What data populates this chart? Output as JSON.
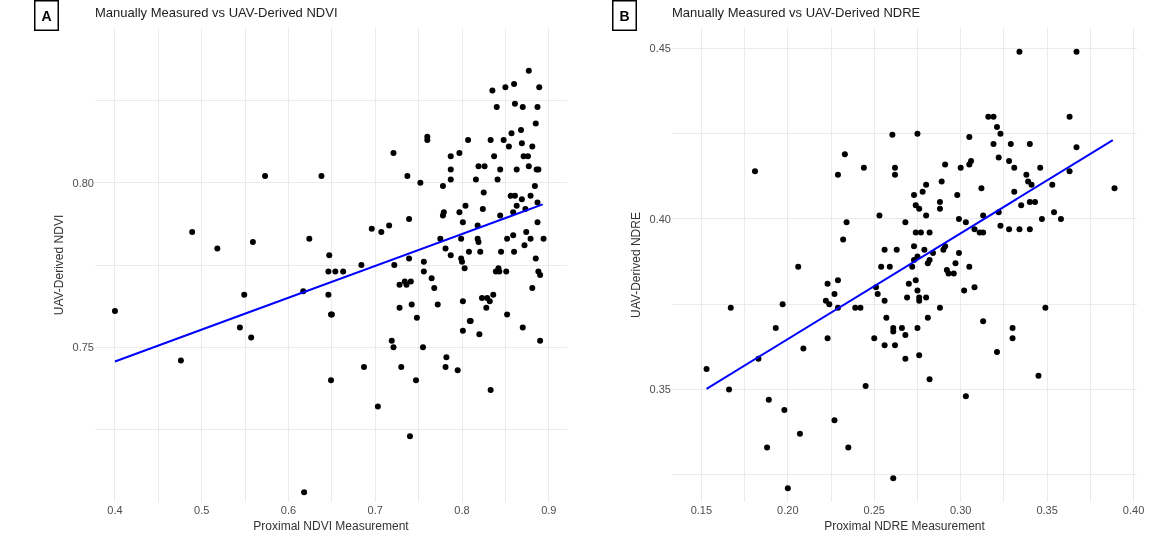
{
  "chart_data": [
    {
      "type": "scatter",
      "title": "Manually Measured vs UAV-Derived NDVI",
      "xlabel": "Proximal NDVI Measurement",
      "ylabel": "UAV-Derived NDVI",
      "annotations": [
        "A"
      ],
      "xlim": [
        0.377,
        0.921
      ],
      "ylim": [
        0.703,
        0.847
      ],
      "xticks": [
        0.4,
        {
          "value": 0.45,
          "label": null
        },
        0.5,
        {
          "value": 0.55,
          "label": null
        },
        0.6,
        {
          "value": 0.65,
          "label": null
        },
        0.7,
        {
          "value": 0.75,
          "label": null
        },
        0.8,
        {
          "value": 0.85,
          "label": null
        },
        0.9
      ],
      "yticks": [
        {
          "value": 0.725,
          "label": null
        },
        0.75,
        {
          "value": 0.775,
          "label": null
        },
        {
          "value": 0.8,
          "label": "0.80"
        },
        {
          "value": 0.825,
          "label": null
        }
      ],
      "grid": true,
      "series": [
        {
          "color": "#000000",
          "marker": "circle",
          "x": [
            0.4,
            0.476,
            0.489,
            0.518,
            0.544,
            0.549,
            0.557,
            0.559,
            0.573,
            0.617,
            0.618,
            0.624,
            0.638,
            0.646,
            0.646,
            0.647,
            0.649,
            0.649,
            0.65,
            0.654,
            0.663,
            0.684,
            0.687,
            0.696,
            0.703,
            0.707,
            0.716,
            0.721,
            0.719,
            0.721,
            0.722,
            0.728,
            0.728,
            0.73,
            0.734,
            0.736,
            0.741,
            0.737,
            0.739,
            0.739,
            0.74,
            0.742,
            0.747,
            0.748,
            0.752,
            0.755,
            0.756,
            0.756,
            0.76,
            0.76,
            0.765,
            0.768,
            0.772,
            0.775,
            0.778,
            0.778,
            0.779,
            0.781,
            0.782,
            0.781,
            0.787,
            0.787,
            0.787,
            0.787,
            0.795,
            0.797,
            0.797,
            0.799,
            0.799,
            0.8,
            0.801,
            0.801,
            0.801,
            0.803,
            0.804,
            0.807,
            0.808,
            0.809,
            0.81,
            0.816,
            0.818,
            0.819,
            0.818,
            0.819,
            0.82,
            0.821,
            0.823,
            0.824,
            0.825,
            0.826,
            0.828,
            0.829,
            0.833,
            0.832,
            0.833,
            0.835,
            0.836,
            0.837,
            0.839,
            0.84,
            0.841,
            0.842,
            0.843,
            0.844,
            0.844,
            0.845,
            0.848,
            0.85,
            0.851,
            0.852,
            0.852,
            0.854,
            0.856,
            0.857,
            0.859,
            0.859,
            0.86,
            0.86,
            0.861,
            0.861,
            0.863,
            0.863,
            0.868,
            0.869,
            0.869,
            0.87,
            0.87,
            0.871,
            0.872,
            0.873,
            0.874,
            0.876,
            0.877,
            0.877,
            0.879,
            0.879,
            0.881,
            0.881,
            0.884,
            0.885,
            0.885,
            0.886,
            0.887,
            0.887,
            0.887,
            0.888,
            0.888,
            0.889,
            0.89,
            0.89,
            0.894
          ],
          "values": [
            0.761,
            0.746,
            0.785,
            0.78,
            0.756,
            0.766,
            0.753,
            0.782,
            0.802,
            0.767,
            0.706,
            0.783,
            0.802,
            0.773,
            0.766,
            0.778,
            0.74,
            0.76,
            0.76,
            0.773,
            0.773,
            0.775,
            0.744,
            0.786,
            0.732,
            0.785,
            0.787,
            0.809,
            0.752,
            0.75,
            0.775,
            0.769,
            0.762,
            0.744,
            0.77,
            0.769,
            0.77,
            0.802,
            0.789,
            0.777,
            0.723,
            0.763,
            0.74,
            0.759,
            0.8,
            0.75,
            0.776,
            0.773,
            0.814,
            0.813,
            0.771,
            0.768,
            0.763,
            0.783,
            0.799,
            0.79,
            0.791,
            0.78,
            0.747,
            0.744,
            0.808,
            0.804,
            0.801,
            0.778,
            0.743,
            0.809,
            0.791,
            0.783,
            0.777,
            0.776,
            0.788,
            0.764,
            0.755,
            0.774,
            0.793,
            0.813,
            0.779,
            0.758,
            0.758,
            0.801,
            0.787,
            0.805,
            0.783,
            0.782,
            0.754,
            0.779,
            0.765,
            0.792,
            0.797,
            0.805,
            0.762,
            0.765,
            0.737,
            0.764,
            0.813,
            0.828,
            0.766,
            0.808,
            0.773,
            0.823,
            0.801,
            0.774,
            0.773,
            0.804,
            0.79,
            0.779,
            0.813,
            0.829,
            0.773,
            0.783,
            0.76,
            0.811,
            0.796,
            0.815,
            0.791,
            0.784,
            0.83,
            0.779,
            0.824,
            0.796,
            0.804,
            0.793,
            0.816,
            0.795,
            0.812,
            0.756,
            0.823,
            0.808,
            0.781,
            0.792,
            0.785,
            0.808,
            0.805,
            0.834,
            0.796,
            0.783,
            0.768,
            0.811,
            0.799,
            0.818,
            0.777,
            0.804,
            0.823,
            0.794,
            0.788,
            0.804,
            0.773,
            0.829,
            0.772,
            0.752,
            0.783
          ]
        },
        {
          "type": "line",
          "color": "#0000ff",
          "x": [
            0.4,
            0.893
          ],
          "values": [
            0.7457,
            0.7934
          ]
        }
      ]
    },
    {
      "type": "scatter",
      "title": "Manually Measured vs UAV-Derived NDRE",
      "xlabel": "Proximal NDRE Measurement",
      "ylabel": "UAV-Derived NDRE",
      "annotations": [
        "B"
      ],
      "xlim": [
        0.133,
        0.402
      ],
      "ylim": [
        0.317,
        0.456
      ],
      "xticks": [
        {
          "value": 0.15,
          "label": "0.15"
        },
        {
          "value": 0.175,
          "label": null
        },
        {
          "value": 0.2,
          "label": "0.20"
        },
        {
          "value": 0.225,
          "label": null
        },
        {
          "value": 0.25,
          "label": "0.25"
        },
        {
          "value": 0.275,
          "label": null
        },
        {
          "value": 0.3,
          "label": "0.30"
        },
        {
          "value": 0.325,
          "label": null
        },
        {
          "value": 0.35,
          "label": "0.35"
        },
        {
          "value": 0.375,
          "label": null
        },
        {
          "value": 0.4,
          "label": "0.40"
        }
      ],
      "yticks": [
        {
          "value": 0.325,
          "label": null
        },
        {
          "value": 0.35,
          "label": "0.35"
        },
        {
          "value": 0.375,
          "label": null
        },
        {
          "value": 0.4,
          "label": "0.40"
        },
        {
          "value": 0.425,
          "label": null
        },
        {
          "value": 0.45,
          "label": "0.45"
        }
      ],
      "grid": true,
      "series": [
        {
          "color": "#000000",
          "marker": "circle",
          "x": [
            0.153,
            0.166,
            0.167,
            0.181,
            0.183,
            0.188,
            0.189,
            0.193,
            0.197,
            0.198,
            0.2,
            0.206,
            0.207,
            0.209,
            0.222,
            0.223,
            0.223,
            0.224,
            0.227,
            0.227,
            0.229,
            0.229,
            0.229,
            0.232,
            0.233,
            0.234,
            0.235,
            0.239,
            0.242,
            0.244,
            0.245,
            0.25,
            0.251,
            0.252,
            0.253,
            0.254,
            0.256,
            0.256,
            0.256,
            0.257,
            0.259,
            0.2605,
            0.261,
            0.261,
            0.261,
            0.262,
            0.262,
            0.262,
            0.263,
            0.266,
            0.268,
            0.268,
            0.268,
            0.269,
            0.27,
            0.272,
            0.273,
            0.273,
            0.273,
            0.274,
            0.274,
            0.274,
            0.275,
            0.275,
            0.275,
            0.275,
            0.276,
            0.276,
            0.276,
            0.276,
            0.277,
            0.278,
            0.279,
            0.28,
            0.28,
            0.28,
            0.281,
            0.281,
            0.282,
            0.282,
            0.282,
            0.284,
            0.288,
            0.288,
            0.288,
            0.289,
            0.29,
            0.291,
            0.291,
            0.292,
            0.293,
            0.296,
            0.297,
            0.298,
            0.299,
            0.3,
            0.299,
            0.302,
            0.303,
            0.303,
            0.305,
            0.305,
            0.305,
            0.306,
            0.308,
            0.308,
            0.311,
            0.312,
            0.313,
            0.313,
            0.313,
            0.316,
            0.319,
            0.319,
            0.321,
            0.321,
            0.322,
            0.322,
            0.323,
            0.323,
            0.328,
            0.328,
            0.329,
            0.33,
            0.33,
            0.331,
            0.331,
            0.334,
            0.334,
            0.335,
            0.338,
            0.339,
            0.34,
            0.34,
            0.34,
            0.341,
            0.343,
            0.345,
            0.346,
            0.347,
            0.349,
            0.353,
            0.354,
            0.358,
            0.363,
            0.363,
            0.367,
            0.367,
            0.389
          ],
          "values": [
            0.356,
            0.35,
            0.374,
            0.414,
            0.359,
            0.333,
            0.347,
            0.368,
            0.375,
            0.344,
            0.321,
            0.386,
            0.337,
            0.362,
            0.376,
            0.365,
            0.381,
            0.375,
            0.378,
            0.341,
            0.382,
            0.413,
            0.374,
            0.394,
            0.419,
            0.399,
            0.333,
            0.374,
            0.374,
            0.415,
            0.351,
            0.365,
            0.38,
            0.378,
            0.401,
            0.386,
            0.391,
            0.376,
            0.363,
            0.371,
            0.386,
            0.4247,
            0.324,
            0.367,
            0.368,
            0.363,
            0.415,
            0.413,
            0.391,
            0.368,
            0.366,
            0.359,
            0.399,
            0.377,
            0.381,
            0.386,
            0.407,
            0.392,
            0.388,
            0.404,
            0.396,
            0.382,
            0.379,
            0.368,
            0.425,
            0.389,
            0.377,
            0.36,
            0.403,
            0.376,
            0.396,
            0.408,
            0.391,
            0.401,
            0.41,
            0.377,
            0.371,
            0.387,
            0.396,
            0.388,
            0.353,
            0.39,
            0.405,
            0.403,
            0.374,
            0.411,
            0.391,
            0.392,
            0.416,
            0.385,
            0.384,
            0.384,
            0.387,
            0.407,
            0.4,
            0.415,
            0.39,
            0.379,
            0.348,
            0.399,
            0.424,
            0.416,
            0.386,
            0.417,
            0.397,
            0.38,
            0.396,
            0.409,
            0.396,
            0.37,
            0.401,
            0.43,
            0.43,
            0.422,
            0.427,
            0.361,
            0.418,
            0.402,
            0.425,
            0.398,
            0.397,
            0.417,
            0.422,
            0.365,
            0.368,
            0.415,
            0.408,
            0.449,
            0.397,
            0.404,
            0.413,
            0.411,
            0.422,
            0.405,
            0.397,
            0.41,
            0.405,
            0.354,
            0.415,
            0.4,
            0.374,
            0.41,
            0.402,
            0.4,
            0.43,
            0.414,
            0.449,
            0.421,
            0.409
          ]
        },
        {
          "type": "line",
          "color": "#0000ff",
          "x": [
            0.153,
            0.388
          ],
          "values": [
            0.3502,
            0.4231
          ]
        }
      ]
    }
  ]
}
